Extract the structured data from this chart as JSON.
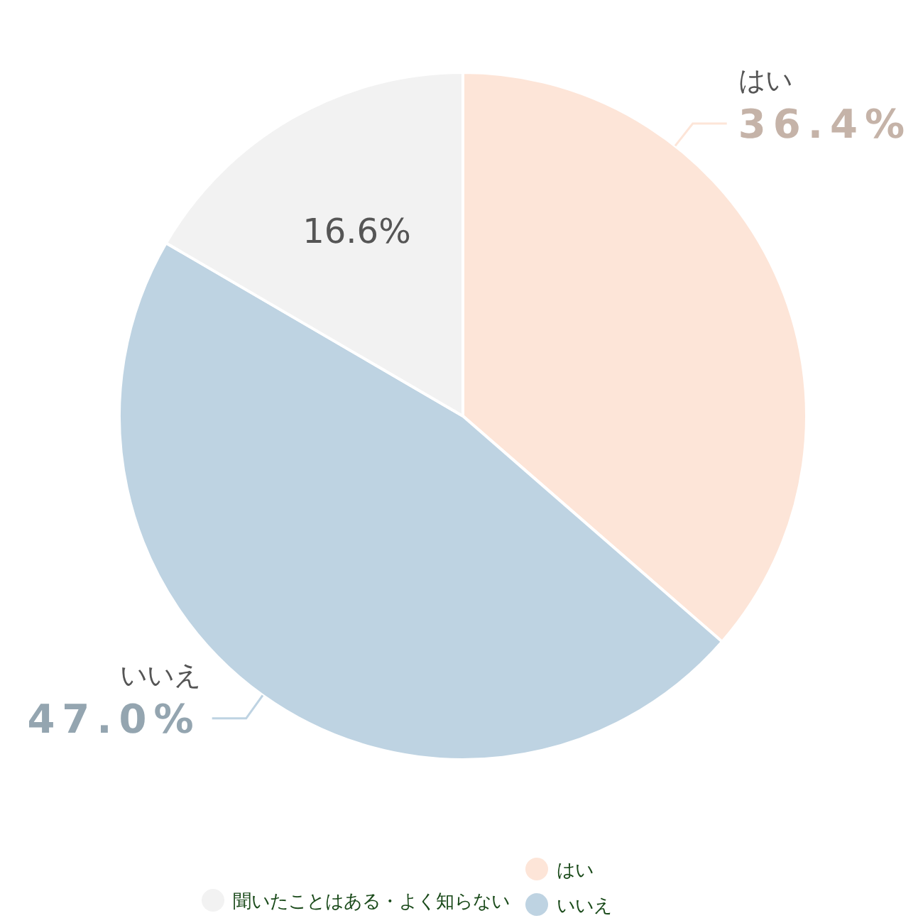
{
  "chart_data": {
    "type": "pie",
    "categories": [
      "はい",
      "いいえ",
      "聞いたことはある・よく知らない"
    ],
    "values": [
      36.4,
      47.0,
      16.6
    ],
    "colors": [
      "#fde5d8",
      "#bed3e2",
      "#f2f2f2"
    ],
    "value_labels": [
      "36.4%",
      "47.0%",
      "16.6%"
    ],
    "legend": "bottom"
  }
}
